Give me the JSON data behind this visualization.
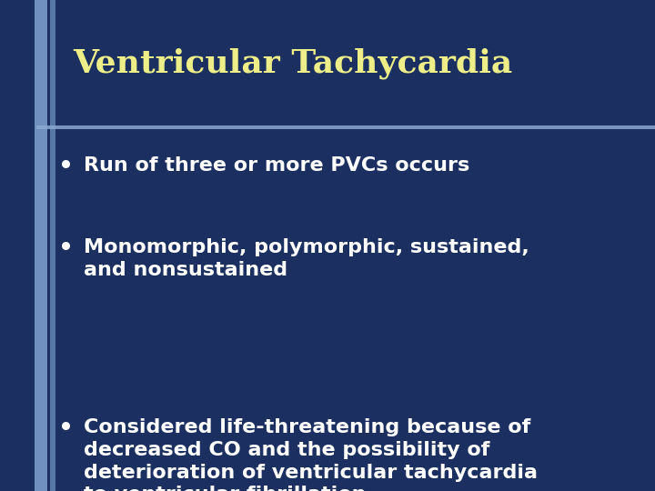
{
  "title": "Ventricular Tachycardia",
  "title_color": "#EEEE88",
  "title_fontsize": 26,
  "bullet_color": "#FFFFFF",
  "bullet_fontsize": 16,
  "background_color": "#1B3060",
  "left_stripe_color_outer": "#7090C0",
  "left_stripe_color_inner": "#5878A8",
  "divider_color": "#8AAAD0",
  "bullets": [
    "Run of three or more PVCs occurs",
    "Monomorphic, polymorphic, sustained,\nand nonsustained",
    "Considered life-threatening because of\ndecreased CO and the possibility of\ndeterioration of ventricular tachycardia\nto ventricular fibrillation"
  ],
  "fig_width": 7.2,
  "fig_height": 5.4,
  "dpi": 100
}
